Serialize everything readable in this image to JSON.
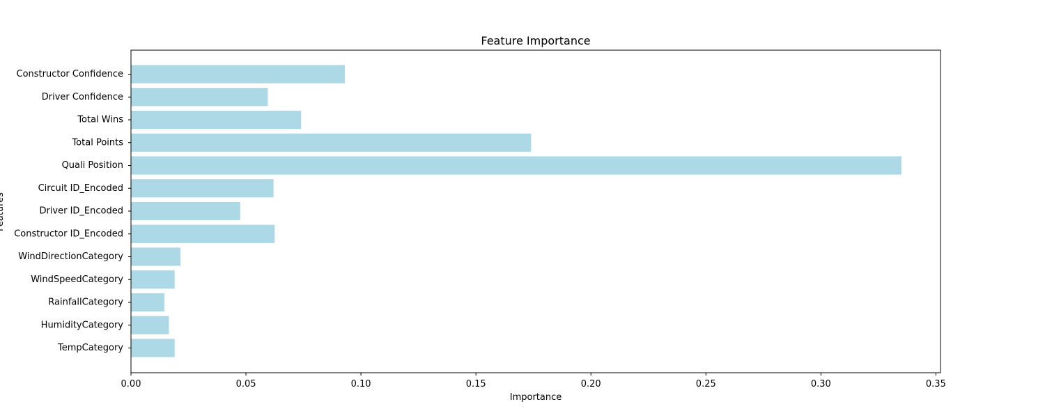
{
  "chart_data": {
    "type": "bar",
    "orientation": "horizontal",
    "title": "Feature Importance",
    "xlabel": "Importance",
    "ylabel": "Features",
    "categories": [
      "TempCategory",
      "HumidityCategory",
      "RainfallCategory",
      "WindSpeedCategory",
      "WindDirectionCategory",
      "Constructor ID_Encoded",
      "Driver ID_Encoded",
      "Circuit ID_Encoded",
      "Quali Position",
      "Total Points",
      "Total Wins",
      "Driver Confidence",
      "Constructor Confidence"
    ],
    "values": [
      0.019,
      0.0165,
      0.0145,
      0.019,
      0.0215,
      0.0625,
      0.0475,
      0.062,
      0.335,
      0.174,
      0.074,
      0.0595,
      0.093
    ],
    "xlim": [
      0,
      0.352
    ],
    "xticks": [
      "0.00",
      "0.05",
      "0.10",
      "0.15",
      "0.20",
      "0.25",
      "0.30",
      "0.35"
    ],
    "bar_color": "#add8e6",
    "grid": false
  }
}
